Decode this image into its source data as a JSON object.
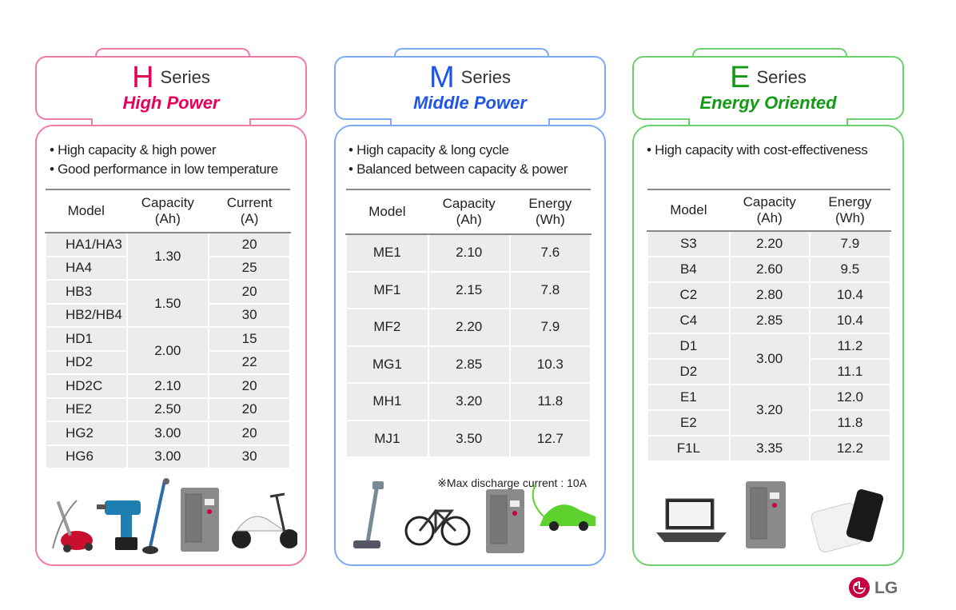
{
  "h_series": {
    "letter": "H",
    "series_word": "Series",
    "subtitle": "High Power",
    "bullets": [
      "• High capacity & high power",
      "• Good performance in low temperature"
    ],
    "headers": {
      "model": "Model",
      "capacity": "Capacity",
      "capacity_unit": "(Ah)",
      "third": "Current",
      "third_unit": "(A)"
    },
    "groups": [
      {
        "capacity": "1.30",
        "rows": [
          {
            "model": "HA1/HA3",
            "value": "20"
          },
          {
            "model": "HA4",
            "value": "25"
          }
        ]
      },
      {
        "capacity": "1.50",
        "rows": [
          {
            "model": "HB3",
            "value": "20"
          },
          {
            "model": "HB2/HB4",
            "value": "30"
          }
        ]
      },
      {
        "capacity": "2.00",
        "rows": [
          {
            "model": "HD1",
            "value": "15"
          },
          {
            "model": "HD2",
            "value": "22"
          }
        ]
      },
      {
        "capacity": "2.10",
        "rows": [
          {
            "model": "HD2C",
            "value": "20"
          }
        ]
      },
      {
        "capacity": "2.50",
        "rows": [
          {
            "model": "HE2",
            "value": "20"
          }
        ]
      },
      {
        "capacity": "3.00",
        "rows": [
          {
            "model": "HG2",
            "value": "20"
          }
        ]
      },
      {
        "capacity": "3.00",
        "rows": [
          {
            "model": "HG6",
            "value": "30"
          }
        ]
      }
    ]
  },
  "m_series": {
    "letter": "M",
    "series_word": "Series",
    "subtitle": "Middle Power",
    "bullets": [
      "• High capacity & long cycle",
      "• Balanced between capacity & power"
    ],
    "headers": {
      "model": "Model",
      "capacity": "Capacity",
      "capacity_unit": "(Ah)",
      "third": "Energy",
      "third_unit": "(Wh)"
    },
    "groups": [
      {
        "capacity": "2.10",
        "rows": [
          {
            "model": "ME1",
            "value": "7.6"
          }
        ]
      },
      {
        "capacity": "2.15",
        "rows": [
          {
            "model": "MF1",
            "value": "7.8"
          }
        ]
      },
      {
        "capacity": "2.20",
        "rows": [
          {
            "model": "MF2",
            "value": "7.9"
          }
        ]
      },
      {
        "capacity": "2.85",
        "rows": [
          {
            "model": "MG1",
            "value": "10.3"
          }
        ]
      },
      {
        "capacity": "3.20",
        "rows": [
          {
            "model": "MH1",
            "value": "11.8"
          }
        ]
      },
      {
        "capacity": "3.50",
        "rows": [
          {
            "model": "MJ1",
            "value": "12.7"
          }
        ]
      }
    ],
    "note": "※Max discharge current : 10A"
  },
  "e_series": {
    "letter": "E",
    "series_word": "Series",
    "subtitle": "Energy Oriented",
    "bullets": [
      "• High capacity with cost-effectiveness"
    ],
    "headers": {
      "model": "Model",
      "capacity": "Capacity",
      "capacity_unit": "(Ah)",
      "third": "Energy",
      "third_unit": "(Wh)"
    },
    "groups": [
      {
        "capacity": "2.20",
        "rows": [
          {
            "model": "S3",
            "value": "7.9"
          }
        ]
      },
      {
        "capacity": "2.60",
        "rows": [
          {
            "model": "B4",
            "value": "9.5"
          }
        ]
      },
      {
        "capacity": "2.80",
        "rows": [
          {
            "model": "C2",
            "value": "10.4"
          }
        ]
      },
      {
        "capacity": "2.85",
        "rows": [
          {
            "model": "C4",
            "value": "10.4"
          }
        ]
      },
      {
        "capacity": "3.00",
        "rows": [
          {
            "model": "D1",
            "value": "11.2"
          },
          {
            "model": "D2",
            "value": "11.1"
          }
        ]
      },
      {
        "capacity": "3.20",
        "rows": [
          {
            "model": "E1",
            "value": "12.0"
          },
          {
            "model": "E2",
            "value": "11.8"
          }
        ]
      },
      {
        "capacity": "3.35",
        "rows": [
          {
            "model": "F1L",
            "value": "12.2"
          }
        ]
      }
    ]
  },
  "colors": {
    "h": "#f07aa8",
    "h_title": "#e6005a",
    "m": "#7eaaf0",
    "m_title": "#1f55e6",
    "e": "#6cd06c",
    "e_title": "#139a14",
    "lg": "#c5003e"
  },
  "logo_text": "LG"
}
